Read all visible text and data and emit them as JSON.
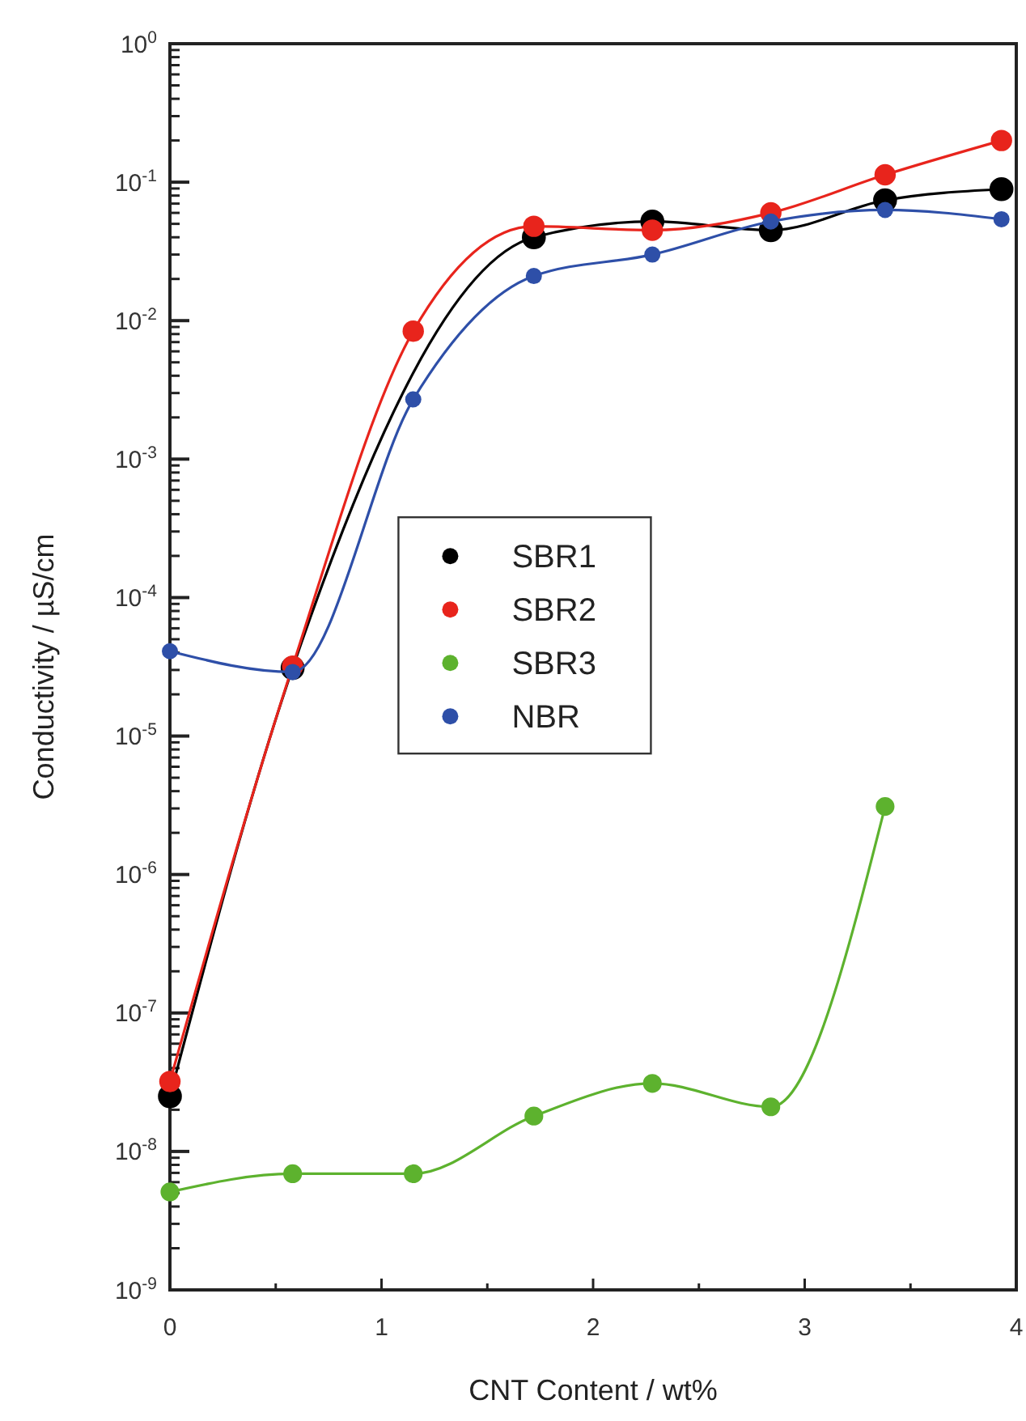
{
  "chart_data": {
    "type": "line",
    "xlabel": "CNT Content / wt%",
    "ylabel": "Conductivity / µS/cm",
    "log": "y",
    "marker": "circle",
    "line_style": "solid",
    "legend": "center",
    "grid": false,
    "x": [
      0,
      0.58,
      1.15,
      1.72,
      2.28,
      2.84,
      3.38,
      3.93
    ],
    "series": [
      {
        "name": "SBR1",
        "color": "#000000",
        "values": [
          2.5e-08,
          3.1e-05,
          null,
          0.04,
          0.052,
          0.045,
          0.074,
          0.089
        ]
      },
      {
        "name": "SBR2",
        "color": "#e8241c",
        "values": [
          3.2e-08,
          3.2e-05,
          0.0084,
          0.048,
          0.045,
          0.06,
          0.113,
          0.2
        ]
      },
      {
        "name": "SBR3",
        "color": "#5db22e",
        "values": [
          5.1e-09,
          6.9e-09,
          6.9e-09,
          1.8e-08,
          3.1e-08,
          2.1e-08,
          3.1e-06,
          null
        ]
      },
      {
        "name": "NBR",
        "color": "#2e4fa8",
        "values": [
          4.1e-05,
          2.9e-05,
          0.0027,
          0.021,
          0.03,
          0.052,
          0.063,
          0.054
        ]
      }
    ],
    "xlim": [
      0,
      4
    ],
    "xticks": [
      0,
      {
        "value": 0.5,
        "label": null
      },
      1,
      {
        "value": 1.5,
        "label": null
      },
      2,
      {
        "value": 2.5,
        "label": null
      },
      3,
      {
        "value": 3.5,
        "label": null
      },
      4
    ],
    "ylim": [
      1e-09,
      1
    ],
    "yticks": [
      {
        "value": 1e-09,
        "label": "10$^{-9}$"
      },
      {
        "value": 1e-08,
        "label": "10$^{-8}$"
      },
      {
        "value": 1e-07,
        "label": "10$^{-7}$"
      },
      {
        "value": 1e-06,
        "label": "10$^{-6}$"
      },
      {
        "value": 1e-05,
        "label": "10$^{-5}$"
      },
      {
        "value": 0.0001,
        "label": "10$^{-4}$"
      },
      {
        "value": 0.001,
        "label": "10$^{-3}$"
      },
      {
        "value": 0.01,
        "label": "10$^{-2}$"
      },
      {
        "value": 0.1,
        "label": "10$^{-1}$"
      },
      {
        "value": 1,
        "label": "10$^{0}$"
      }
    ]
  }
}
